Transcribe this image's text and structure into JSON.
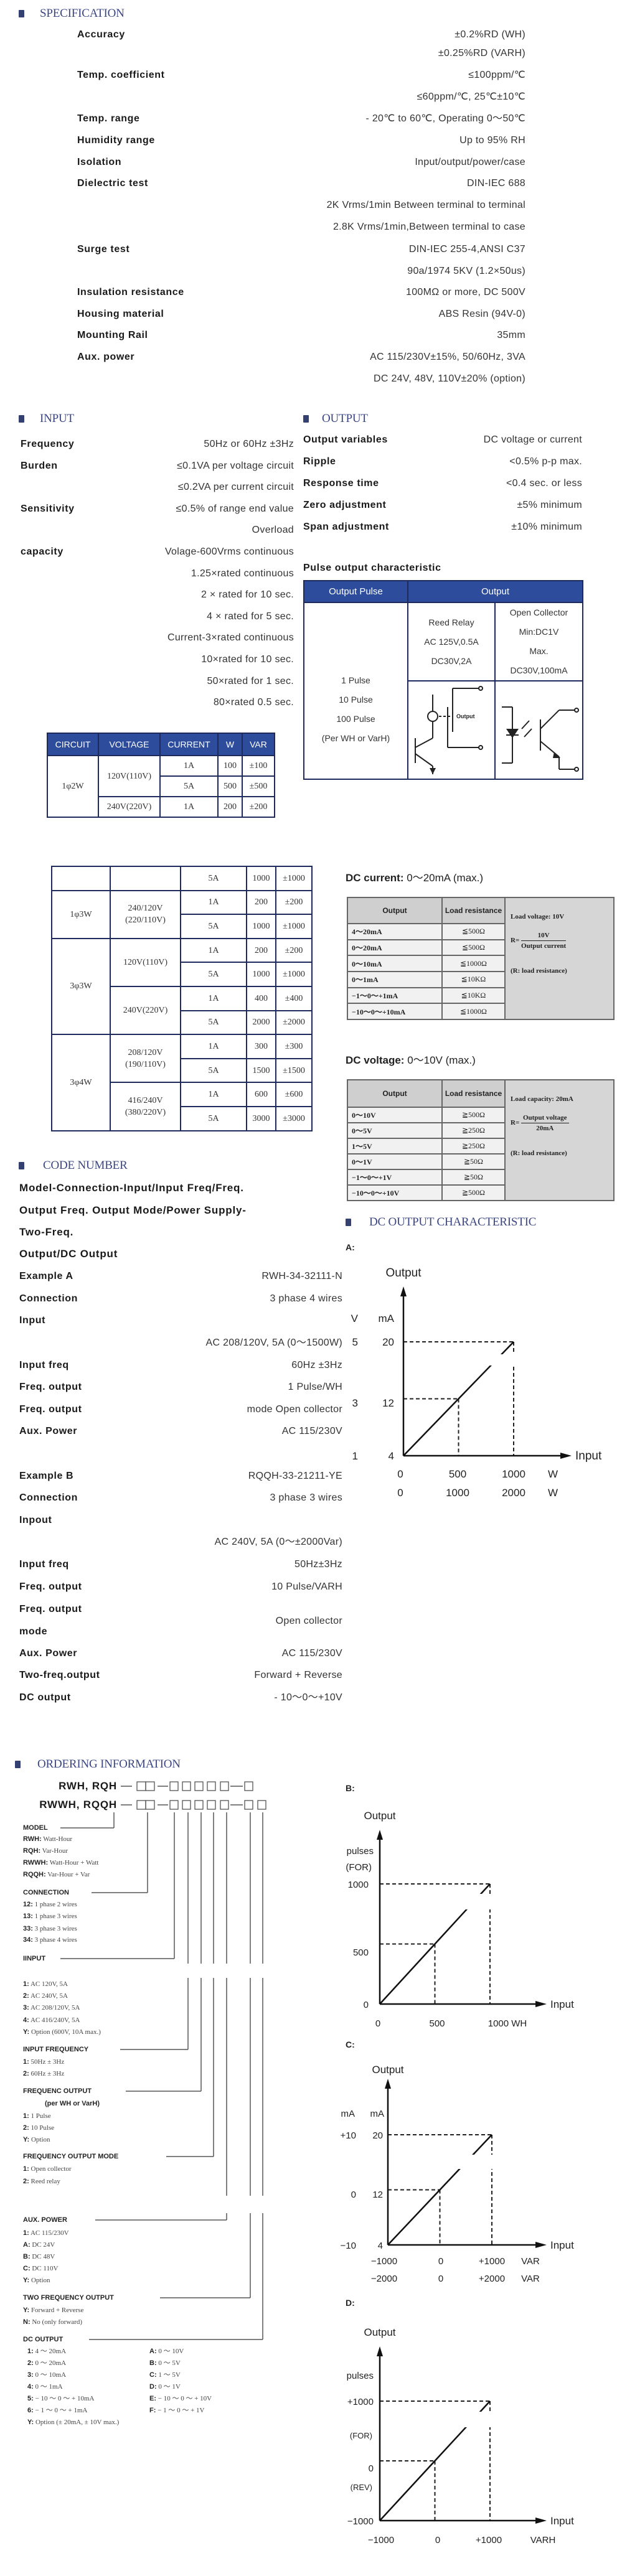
{
  "spec": {
    "title": "SPECIFICATION",
    "rows": [
      {
        "label": "Accuracy",
        "value": "±0.2%RD (WH)"
      },
      {
        "label": "",
        "value": "±0.25%RD (VARH)"
      },
      {
        "label": "Temp. coefficient",
        "value": "≤100ppm/℃"
      },
      {
        "label": "",
        "value": "≤60ppm/℃, 25℃±10℃"
      },
      {
        "label": "Temp. range",
        "value": "- 20℃ to 60℃, Operating 0～50℃"
      },
      {
        "label": "Humidity range",
        "value": "Up to 95% RH"
      },
      {
        "label": "Isolation",
        "value": "Input/output/power/case"
      },
      {
        "label": "Dielectric test",
        "value": "DIN-IEC 688"
      },
      {
        "label": "",
        "value": "2K Vrms/1min Between terminal to terminal"
      },
      {
        "label": "",
        "value": "2.8K Vrms/1min,Between terminal to case"
      },
      {
        "label": "Surge test",
        "value": "DIN-IEC 255-4,ANSI C37"
      },
      {
        "label": "",
        "value": "90a/1974   5KV (1.2×50us)"
      },
      {
        "label": "Insulation resistance",
        "value": "100MΩ or more, DC 500V"
      },
      {
        "label": "Housing material",
        "value": "ABS Resin (94V-0)"
      },
      {
        "label": "Mounting Rail",
        "value": "35mm"
      },
      {
        "label": "Aux. power",
        "value": "AC 115/230V±15%, 50/60Hz, 3VA"
      },
      {
        "label": "",
        "value": "DC 24V, 48V, 110V±20% (option)"
      }
    ]
  },
  "input": {
    "title": "INPUT",
    "rows": [
      {
        "label": "Frequency",
        "value": "50Hz or 60Hz ±3Hz"
      },
      {
        "label": "Burden",
        "value": "≤0.1VA per voltage circuit"
      },
      {
        "label": "",
        "value": "≤0.2VA per current circuit"
      },
      {
        "label": "Sensitivity",
        "value": "≤0.5% of range end value"
      },
      {
        "label": "",
        "value": "Overload"
      },
      {
        "label": "capacity",
        "value": "Volage-600Vrms continuous"
      },
      {
        "label": "",
        "value": "1.25×rated continuous"
      },
      {
        "label": "",
        "value": "2 × rated for 10 sec."
      },
      {
        "label": "",
        "value": "4 × rated for 5 sec."
      },
      {
        "label": "",
        "value": "Current-3×rated continuous"
      },
      {
        "label": "",
        "value": "10×rated for 10 sec."
      },
      {
        "label": "",
        "value": "50×rated for 1 sec."
      },
      {
        "label": "",
        "value": "80×rated 0.5 sec."
      }
    ]
  },
  "output": {
    "title": "OUTPUT",
    "rows": [
      {
        "label": "Output variables",
        "value": "DC voltage or current"
      },
      {
        "label": "Ripple",
        "value": "<0.5% p-p max."
      },
      {
        "label": "Response time",
        "value": "<0.4 sec. or less"
      },
      {
        "label": "Zero adjustment",
        "value": "±5% minimum"
      },
      {
        "label": "Span adjustment",
        "value": "±10% minimum"
      }
    ],
    "pulse_title": "Pulse output characteristic",
    "pulse_table": {
      "headers": [
        "Output Pulse",
        "Output"
      ],
      "pulses": [
        "1 Pulse",
        "10 Pulse",
        "100 Pulse",
        "(Per WH or VarH)"
      ],
      "reed_relay": [
        "Reed Relay",
        "AC 125V,0.5A",
        "DC30V,2A"
      ],
      "open_collector": [
        "Open Collector",
        "Min:DC1V",
        "Max.",
        "DC30V,100mA"
      ],
      "relay_diagram_label": "Output"
    }
  },
  "circuit_table_1": {
    "headers": [
      "CIRCUIT",
      "VOLTAGE",
      "CURRENT",
      "W",
      "VAR"
    ],
    "groups": [
      {
        "circuit": "1φ2W",
        "voltages": [
          {
            "voltage": "120V(110V)",
            "rows": [
              {
                "current": "1A",
                "w": "100",
                "var": "±100"
              },
              {
                "current": "5A",
                "w": "500",
                "var": "±500"
              }
            ]
          },
          {
            "voltage": "240V(220V)",
            "rows": [
              {
                "current": "1A",
                "w": "200",
                "var": "±200"
              }
            ]
          }
        ]
      }
    ]
  },
  "circuit_table_2": {
    "groups": [
      {
        "circuit": "",
        "voltages": [
          {
            "voltage": "",
            "rows": [
              {
                "current": "5A",
                "w": "1000",
                "var": "±1000"
              }
            ]
          }
        ]
      },
      {
        "circuit": "1φ3W",
        "voltages": [
          {
            "voltage": "240/120V\n(220/110V)",
            "rows": [
              {
                "current": "1A",
                "w": "200",
                "var": "±200"
              },
              {
                "current": "5A",
                "w": "1000",
                "var": "±1000"
              }
            ]
          }
        ]
      },
      {
        "circuit": "3φ3W",
        "voltages": [
          {
            "voltage": "120V(110V)",
            "rows": [
              {
                "current": "1A",
                "w": "200",
                "var": "±200"
              },
              {
                "current": "5A",
                "w": "1000",
                "var": "±1000"
              }
            ]
          },
          {
            "voltage": "240V(220V)",
            "rows": [
              {
                "current": "1A",
                "w": "400",
                "var": "±400"
              },
              {
                "current": "5A",
                "w": "2000",
                "var": "±2000"
              }
            ]
          }
        ]
      },
      {
        "circuit": "3φ4W",
        "voltages": [
          {
            "voltage": "208/120V\n(190/110V)",
            "rows": [
              {
                "current": "1A",
                "w": "300",
                "var": "±300"
              },
              {
                "current": "5A",
                "w": "1500",
                "var": "±1500"
              }
            ]
          },
          {
            "voltage": "416/240V\n(380/220V)",
            "rows": [
              {
                "current": "1A",
                "w": "600",
                "var": "±600"
              },
              {
                "current": "5A",
                "w": "3000",
                "var": "±3000"
              }
            ]
          }
        ]
      }
    ]
  },
  "dc_current": {
    "title_bold": "DC current:",
    "title_rest": " 0～20mA (max.)",
    "headers": [
      "Output",
      "Load resistance"
    ],
    "rows": [
      {
        "output": "4～20mA",
        "load": "≦500Ω"
      },
      {
        "output": "0～20mA",
        "load": "≦500Ω"
      },
      {
        "output": "0～10mA",
        "load": "≦1000Ω"
      },
      {
        "output": "0～1mA",
        "load": "≦10KΩ"
      },
      {
        "output": "−1～0～+1mA",
        "load": "≦10KΩ"
      },
      {
        "output": "−10～0～+10mA",
        "load": "≦1000Ω"
      }
    ],
    "note_load": "Load voltage: 10V",
    "note_r": "R=",
    "note_num": "10V",
    "note_den": "Output current",
    "note_def": "(R: load resistance)"
  },
  "dc_voltage": {
    "title_bold": "DC voltage:",
    "title_rest": " 0～10V (max.)",
    "headers": [
      "Output",
      "Load resistance"
    ],
    "rows": [
      {
        "output": "0～10V",
        "load": "≧500Ω"
      },
      {
        "output": "0～5V",
        "load": "≧250Ω"
      },
      {
        "output": "1～5V",
        "load": "≧250Ω"
      },
      {
        "output": "0～1V",
        "load": "≧50Ω"
      },
      {
        "output": "−1～0～+1V",
        "load": "≧50Ω"
      },
      {
        "output": "−10～0～+10V",
        "load": "≧500Ω"
      }
    ],
    "note_load": "Load capacity: 20mA",
    "note_r": "R=",
    "note_num": "Output voltage",
    "note_den": "20mA",
    "note_def": "(R: load resistance)"
  },
  "code_number": {
    "title": "CODE NUMBER",
    "format_lines": [
      "Model-Connection-Input/Input Freq/Freq.",
      "Output Freq. Output Mode/Power Supply-",
      "Two-Freq.",
      "Output/DC Output"
    ],
    "example_a": [
      {
        "label": "Example A",
        "value": "RWH-34-32111-N"
      },
      {
        "label": "Connection",
        "value": "3 phase 4 wires"
      },
      {
        "label": "Input",
        "value": ""
      },
      {
        "label": "",
        "value": "AC 208/120V, 5A (0～1500W)"
      },
      {
        "label": "Input freq",
        "value": "60Hz ±3Hz"
      },
      {
        "label": "Freq. output",
        "value": "1 Pulse/WH"
      },
      {
        "label": "Freq. output",
        "value": "mode Open collector"
      },
      {
        "label": "Aux. Power",
        "value": "AC 115/230V"
      }
    ],
    "example_b": [
      {
        "label": "Example B",
        "value": "RQQH-33-21211-YE"
      },
      {
        "label": "Connection",
        "value": "3 phase 3 wires"
      },
      {
        "label": "Inpout",
        "value": ""
      },
      {
        "label": "",
        "value": "AC 240V, 5A (0～±2000Var)"
      },
      {
        "label": "Input freq",
        "value": "50Hz±3Hz"
      },
      {
        "label": "Freq. output",
        "value": "10 Pulse/VARH"
      },
      {
        "label": "Freq. output",
        "value": ""
      },
      {
        "label": "mode",
        "value": ""
      },
      {
        "label": "Aux. Power",
        "value": "AC 115/230V"
      },
      {
        "label": "Two-freq.output",
        "value": "Forward + Reverse"
      },
      {
        "label": "DC output",
        "value": "- 10～0～+10V"
      }
    ],
    "example_b_mode_value": "Open collector"
  },
  "dc_output_characteristic": {
    "title": "DC OUTPUT CHARACTERISTIC"
  },
  "chart_data": [
    {
      "type": "line",
      "label": "A:",
      "ylabel": "Output",
      "xlabel": "Input",
      "y_units": [
        "V",
        "mA"
      ],
      "y_ticks": [
        [
          "1",
          "3",
          "5"
        ],
        [
          "4",
          "12",
          "20"
        ]
      ],
      "x_ticks": [
        [
          "0",
          "500",
          "1000",
          "W"
        ],
        [
          "0",
          "1000",
          "2000",
          "W"
        ]
      ],
      "x": [
        0,
        500,
        1000
      ],
      "y": [
        4,
        12,
        20
      ],
      "xlim": [
        0,
        1000
      ],
      "ylim": [
        4,
        20
      ],
      "guides": "dashed"
    },
    {
      "type": "line",
      "label": "B:",
      "ylabel": "Output",
      "xlabel": "Input",
      "y_units": [
        "pulses",
        "(FOR)"
      ],
      "y_ticks": [
        [
          "0",
          "500",
          "1000"
        ]
      ],
      "x_ticks": [
        [
          "0",
          "500",
          "1000 WH"
        ]
      ],
      "x": [
        0,
        500,
        1000
      ],
      "y": [
        0,
        500,
        1000
      ],
      "xlim": [
        0,
        1000
      ],
      "ylim": [
        0,
        1000
      ],
      "guides": "dashed"
    },
    {
      "type": "line",
      "label": "C:",
      "ylabel": "Output",
      "xlabel": "Input",
      "y_units": [
        "mA",
        "mA"
      ],
      "y_ticks": [
        [
          "−10",
          "0",
          "+10"
        ],
        [
          "4",
          "12",
          "20"
        ]
      ],
      "x_ticks": [
        [
          "−1000",
          "0",
          "+1000",
          "VAR"
        ],
        [
          "−2000",
          "0",
          "+2000",
          "VAR"
        ]
      ],
      "x": [
        -1000,
        0,
        1000
      ],
      "y": [
        4,
        12,
        20
      ],
      "xlim": [
        -1000,
        1000
      ],
      "ylim": [
        4,
        20
      ],
      "guides": "dashed"
    },
    {
      "type": "line",
      "label": "D:",
      "ylabel": "Output",
      "xlabel": "Input",
      "y_units": [
        "pulses"
      ],
      "y_ticks": [
        [
          "−1000",
          "0",
          "+1000"
        ]
      ],
      "y_annotations": [
        "(FOR)",
        "(REV)"
      ],
      "x_ticks": [
        [
          "−1000",
          "0",
          "+1000",
          "VARH"
        ]
      ],
      "x": [
        -1000,
        0,
        1000
      ],
      "y": [
        -1000,
        0,
        1000
      ],
      "xlim": [
        -1000,
        1000
      ],
      "ylim": [
        -1000,
        1000
      ],
      "guides": "dashed"
    }
  ],
  "ordering": {
    "title": "ORDERING INFORMATION",
    "model_line_1": "RWH, RQH",
    "model_line_2": "RWWH, RQQH",
    "lines": [
      {
        "heading": "MODEL"
      },
      {
        "code": "RWH:",
        "text": "Watt-Hour"
      },
      {
        "code": "RQH:",
        "text": "Var-Hour"
      },
      {
        "code": "RWWH:",
        "text": "Watt-Hour + Watt"
      },
      {
        "code": "RQQH:",
        "text": "Var-Hour + Var"
      },
      {
        "heading": "CONNECTION"
      },
      {
        "code": "12:",
        "text": "1 phase 2 wires"
      },
      {
        "code": "13:",
        "text": "1 phase 3 wires"
      },
      {
        "code": "33:",
        "text": "3 phase 3 wires"
      },
      {
        "code": "34:",
        "text": "3 phase 4 wires"
      },
      {
        "heading": "IINPUT"
      },
      {
        "code": "1:",
        "text": "AC 120V, 5A"
      },
      {
        "code": "2:",
        "text": "AC 240V, 5A"
      },
      {
        "code": "3:",
        "text": "AC 208/120V, 5A"
      },
      {
        "code": "4:",
        "text": "AC 416/240V, 5A"
      },
      {
        "code": "Y:",
        "text": "Option (600V, 10A max.)"
      },
      {
        "heading": "INPUT FREQUENCY"
      },
      {
        "code": "1:",
        "text": "50Hz ± 3Hz"
      },
      {
        "code": "2:",
        "text": "60Hz ± 3Hz"
      },
      {
        "heading": "FREQUENC OUTPUT"
      },
      {
        "heading": "(per WH or VarH)"
      },
      {
        "code": "1:",
        "text": "1 Pulse"
      },
      {
        "code": "2:",
        "text": "10 Pulse"
      },
      {
        "code": "Y:",
        "text": "Option"
      },
      {
        "heading": "FREQUENCY OUTPUT MODE"
      },
      {
        "code": "1:",
        "text": "Open collector"
      },
      {
        "code": "2:",
        "text": "Reed relay"
      },
      {
        "heading": "AUX.  POWER"
      },
      {
        "code": "1:",
        "text": " AC 115/230V"
      },
      {
        "code": "A:",
        "text": "DC 24V"
      },
      {
        "code": "B:",
        "text": "DC 48V"
      },
      {
        "code": "C:",
        "text": "DC 110V"
      },
      {
        "code": "Y:",
        "text": "Option"
      },
      {
        "heading": "TWO FREQUENCY OUTPUT"
      },
      {
        "code": "Y:",
        "text": "Forward + Reverse"
      },
      {
        "code": "N:",
        "text": "No (only forward)"
      },
      {
        "heading": "DC OUTPUT"
      }
    ],
    "dc_output_left": [
      {
        "code": "1:",
        "text": "4 ～ 20mA"
      },
      {
        "code": "2:",
        "text": "0 ～ 20mA"
      },
      {
        "code": "3:",
        "text": "0 ～ 10mA"
      },
      {
        "code": "4:",
        "text": "0 ～ 1mA"
      },
      {
        "code": "5:",
        "text": "− 10 ～ 0 ～ + 10mA"
      },
      {
        "code": "6:",
        "text": "− 1 ～ 0 ～ + 1mA"
      }
    ],
    "dc_output_right": [
      {
        "code": "A:",
        "text": "0 ～ 10V"
      },
      {
        "code": "B:",
        "text": "0 ～ 5V"
      },
      {
        "code": "C:",
        "text": "1 ～ 5V"
      },
      {
        "code": "D:",
        "text": "0 ～ 1V"
      },
      {
        "code": "E:",
        "text": "− 10 ～ 0 ～ + 10V"
      },
      {
        "code": "F:",
        "text": "− 1 ～ 0 ～ + 1V"
      }
    ],
    "dc_output_option": {
      "code": "Y:",
      "text": "Option (± 20mA, ± 10V max.)"
    }
  },
  "colors": {
    "section_title": "#3b4682",
    "table_header": "#2d4d9c",
    "table_border": "#1f2a5c",
    "dc_table_note": "#d6d6d6"
  }
}
